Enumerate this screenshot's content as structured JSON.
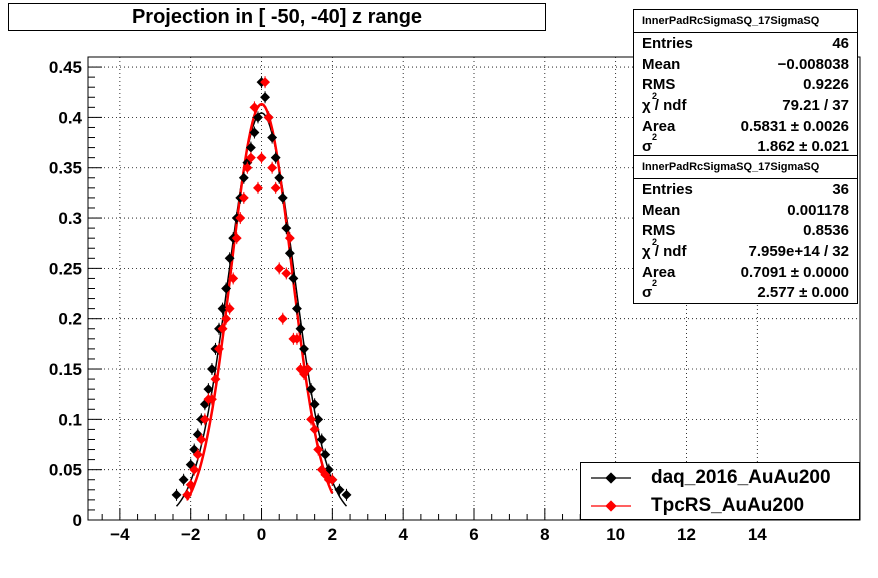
{
  "chart_data": {
    "type": "scatter",
    "title": "Projection in [ -50, -40] z range",
    "xlim": [
      -4.9,
      16.9
    ],
    "ylim": [
      0,
      0.46
    ],
    "x_ticks": [
      -4,
      -2,
      0,
      2,
      4,
      6,
      8,
      10,
      12,
      14
    ],
    "y_ticks": [
      0,
      0.05,
      0.1,
      0.15,
      0.2,
      0.25,
      0.3,
      0.35,
      0.4,
      0.45
    ],
    "x_tick_labels": [
      "−4",
      "−2",
      "0",
      "2",
      "4",
      "6",
      "8",
      "10",
      "12",
      "14"
    ],
    "y_tick_labels": [
      "0",
      "0.05",
      "0.1",
      "0.15",
      "0.2",
      "0.25",
      "0.3",
      "0.35",
      "0.4",
      "0.45"
    ],
    "grid": true,
    "legend_position": "bottom-right",
    "series": [
      {
        "name": "daq_2016_AuAu200",
        "color": "#000000",
        "x": [
          -2.4,
          -2.2,
          -2.0,
          -1.9,
          -1.8,
          -1.7,
          -1.6,
          -1.5,
          -1.4,
          -1.3,
          -1.2,
          -1.1,
          -1.0,
          -0.9,
          -0.8,
          -0.7,
          -0.6,
          -0.5,
          -0.4,
          -0.3,
          -0.2,
          -0.1,
          0.0,
          0.1,
          0.2,
          0.3,
          0.4,
          0.5,
          0.6,
          0.7,
          0.8,
          0.9,
          1.0,
          1.1,
          1.2,
          1.3,
          1.4,
          1.5,
          1.6,
          1.7,
          1.8,
          1.9,
          2.0,
          2.2,
          2.4
        ],
        "y": [
          0.025,
          0.04,
          0.055,
          0.07,
          0.085,
          0.1,
          0.115,
          0.13,
          0.15,
          0.17,
          0.19,
          0.21,
          0.23,
          0.26,
          0.28,
          0.3,
          0.32,
          0.34,
          0.355,
          0.37,
          0.385,
          0.4,
          0.435,
          0.42,
          0.4,
          0.38,
          0.36,
          0.34,
          0.32,
          0.29,
          0.265,
          0.24,
          0.21,
          0.19,
          0.17,
          0.15,
          0.13,
          0.115,
          0.1,
          0.08,
          0.065,
          0.05,
          0.04,
          0.03,
          0.025
        ],
        "fit_sigma": 0.9226
      },
      {
        "name": "TpcRS_AuAu200",
        "color": "#ff0000",
        "x": [
          -2.1,
          -2.0,
          -1.9,
          -1.8,
          -1.7,
          -1.6,
          -1.5,
          -1.4,
          -1.3,
          -1.2,
          -1.1,
          -1.0,
          -0.9,
          -0.8,
          -0.7,
          -0.6,
          -0.5,
          -0.4,
          -0.3,
          -0.2,
          -0.1,
          0.0,
          0.1,
          0.2,
          0.3,
          0.4,
          0.5,
          0.6,
          0.7,
          0.8,
          0.9,
          1.0,
          1.1,
          1.2,
          1.3,
          1.4,
          1.5,
          1.6,
          1.7,
          1.8,
          1.9,
          2.0
        ],
        "y": [
          0.025,
          0.035,
          0.05,
          0.065,
          0.08,
          0.1,
          0.12,
          0.12,
          0.14,
          0.17,
          0.19,
          0.2,
          0.21,
          0.24,
          0.28,
          0.3,
          0.32,
          0.35,
          0.36,
          0.41,
          0.33,
          0.36,
          0.435,
          0.4,
          0.35,
          0.33,
          0.25,
          0.2,
          0.245,
          0.28,
          0.18,
          0.18,
          0.15,
          0.145,
          0.15,
          0.1,
          0.09,
          0.07,
          0.05,
          0.045,
          0.04,
          0.04
        ],
        "fit_sigma": 0.8536
      }
    ],
    "stats": [
      {
        "title": "InnerPadRcSigmaSQ_17SigmaSQ",
        "rows": [
          {
            "label": "Entries",
            "value": "46"
          },
          {
            "label": "Mean",
            "value": "−0.008038"
          },
          {
            "label": "RMS",
            "value": "0.9226"
          },
          {
            "label": "χ",
            "sup": "2",
            "label2": " / ndf",
            "value": "79.21 / 37"
          },
          {
            "label": "Area",
            "value": "0.5831 ± 0.0026"
          },
          {
            "label": "σ",
            "sup": "2",
            "value": "1.862 ± 0.021"
          }
        ]
      },
      {
        "title": "InnerPadRcSigmaSQ_17SigmaSQ",
        "rows": [
          {
            "label": "Entries",
            "value": "36"
          },
          {
            "label": "Mean",
            "value": "0.001178"
          },
          {
            "label": "RMS",
            "value": "0.8536"
          },
          {
            "label": "χ",
            "sup": "2",
            "label2": " / ndf",
            "value": "7.959e+14 / 32"
          },
          {
            "label": "Area",
            "value": "0.7091 ± 0.0000"
          },
          {
            "label": "σ",
            "sup": "2",
            "value": "2.577 ± 0.000"
          }
        ]
      }
    ]
  }
}
